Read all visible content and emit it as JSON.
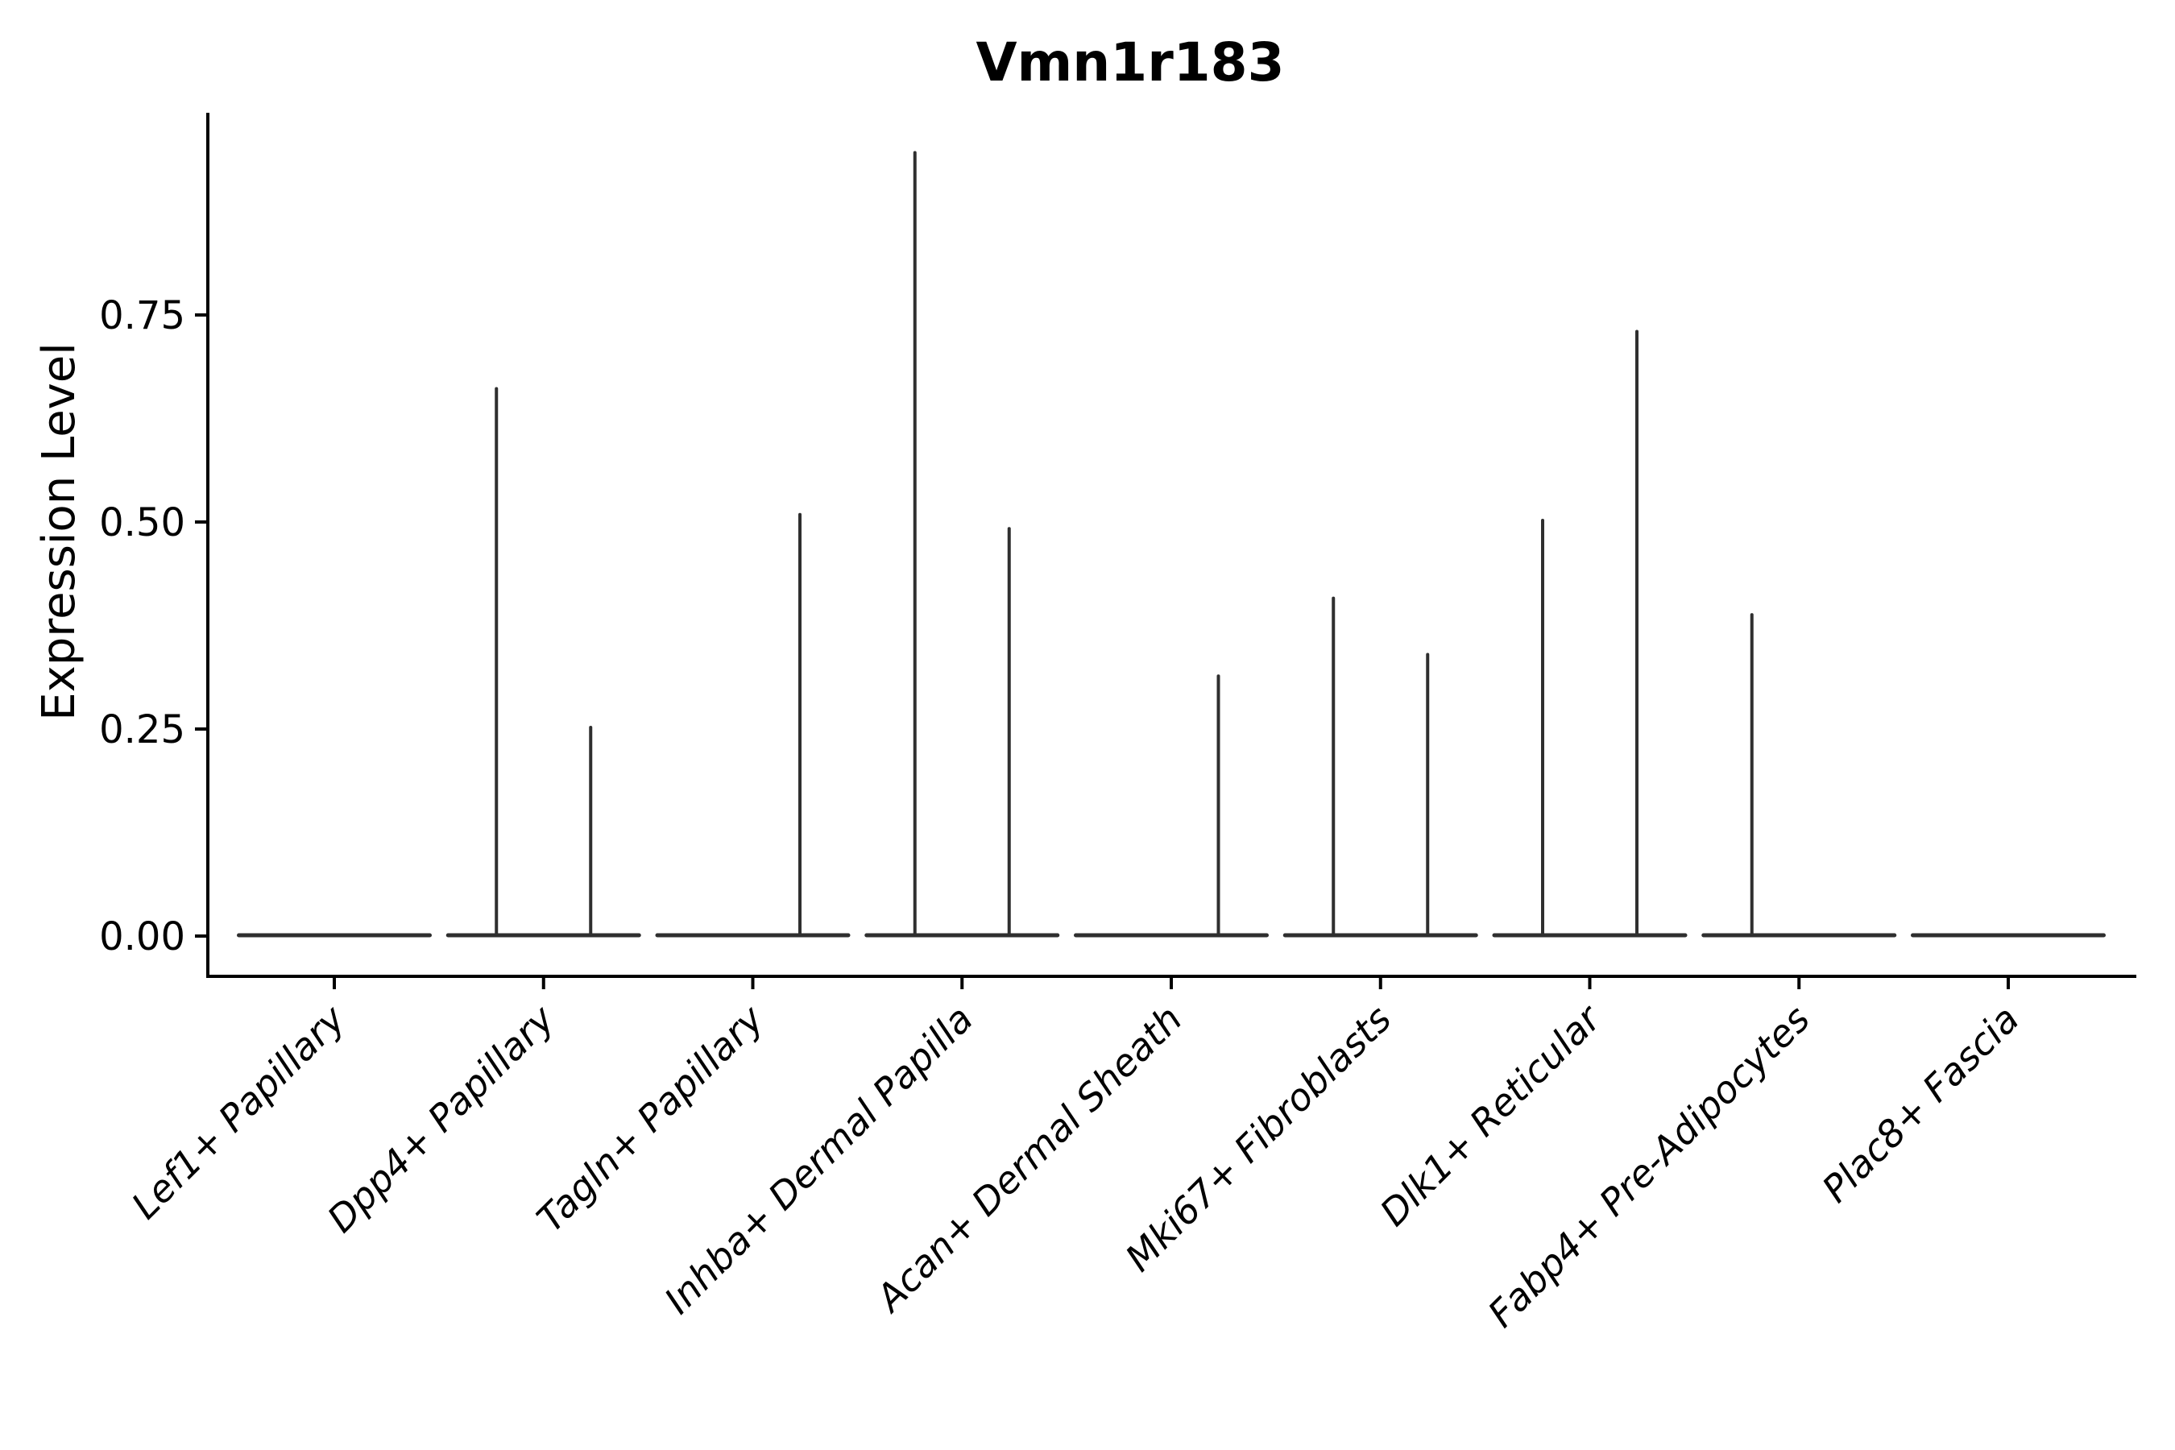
{
  "figure": {
    "title": "Vmn1r183",
    "ylabel": "Expression Level",
    "xlabel": ""
  },
  "colors": {
    "background": "#ffffff",
    "violin": "#2f2f2f",
    "axis": "#000000",
    "text": "#000000"
  },
  "chart_data": {
    "type": "violin",
    "title": "Vmn1r183",
    "xlabel": "",
    "ylabel": "Expression Level",
    "ylim": [
      -0.05,
      0.995
    ],
    "grid": false,
    "legend": "none",
    "ytick_labels": [
      "0.00",
      "0.25",
      "0.50",
      "0.75"
    ],
    "ytick_values": [
      0.0,
      0.25,
      0.5,
      0.75
    ],
    "categories": [
      "Lef1+ Papillary",
      "Dpp4+ Papillary",
      "Tagln+ Papillary",
      "Inhba+ Dermal Papilla",
      "Acan+ Dermal Sheath",
      "Mki67+ Fibroblasts",
      "Dlk1+ Reticular",
      "Fabp4+ Pre-Adipocytes",
      "Plac8+ Fascia"
    ],
    "description": "Violin plot of Vmn1r183 expression; density is concentrated at 0 in every group so each violin collapses to a flat line at 0 with a thin spike up to the maximum expressed value. Two dodged violins (left/right) per category.",
    "baseline_value": 0.0,
    "violins": [
      {
        "category": "Lef1+ Papillary",
        "max_expression": {
          "left": 0.0,
          "right": 0.0
        }
      },
      {
        "category": "Dpp4+ Papillary",
        "max_expression": {
          "left": 0.661,
          "right": 0.252
        }
      },
      {
        "category": "Tagln+ Papillary",
        "max_expression": {
          "left": 0.0,
          "right": 0.509
        }
      },
      {
        "category": "Inhba+ Dermal Papilla",
        "max_expression": {
          "left": 0.946,
          "right": 0.492
        }
      },
      {
        "category": "Acan+ Dermal Sheath",
        "max_expression": {
          "left": 0.0,
          "right": 0.314
        }
      },
      {
        "category": "Mki67+ Fibroblasts",
        "max_expression": {
          "left": 0.408,
          "right": 0.34
        }
      },
      {
        "category": "Dlk1+ Reticular",
        "max_expression": {
          "left": 0.502,
          "right": 0.73
        }
      },
      {
        "category": "Fabp4+ Pre-Adipocytes",
        "max_expression": {
          "left": 0.388,
          "right": 0.0
        }
      },
      {
        "category": "Plac8+ Fascia",
        "max_expression": {
          "left": 0.0,
          "right": 0.0
        }
      }
    ]
  }
}
